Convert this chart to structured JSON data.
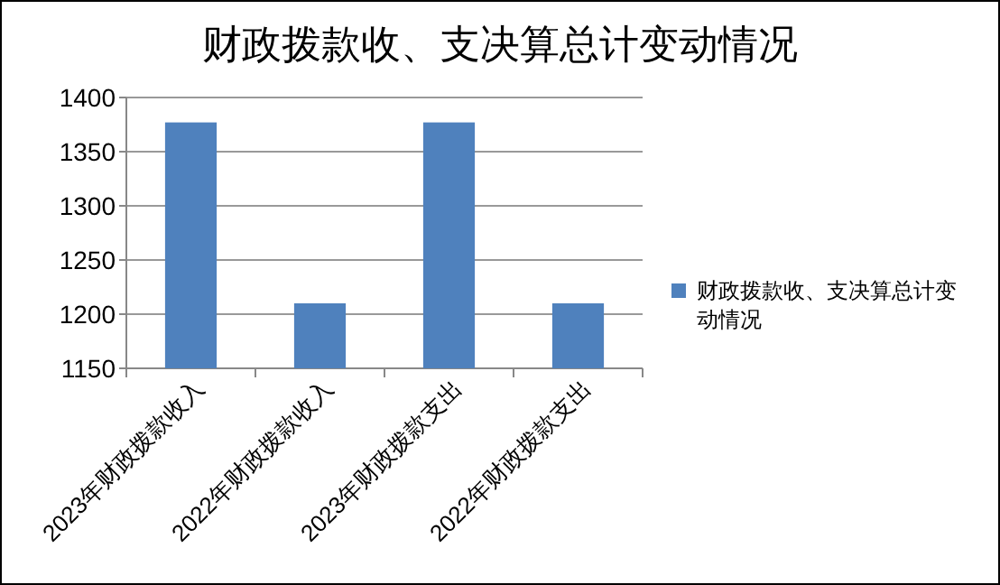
{
  "chart_data": {
    "type": "bar",
    "title": "财政拨款收、支决算总计变动情况",
    "categories": [
      "2023年财政拨款收入",
      "2022年财政拨款收入",
      "2023年财政拨款支出",
      "2022年财政拨款支出"
    ],
    "series": [
      {
        "name": "财政拨款收、支决算总计变动情况",
        "color": "#4f81bd",
        "values": [
          1377,
          1210,
          1377,
          1210
        ]
      }
    ],
    "ylim": [
      1150,
      1400
    ],
    "yticks": [
      1150,
      1200,
      1250,
      1300,
      1350,
      1400
    ],
    "grid": "y",
    "legend": "right"
  }
}
